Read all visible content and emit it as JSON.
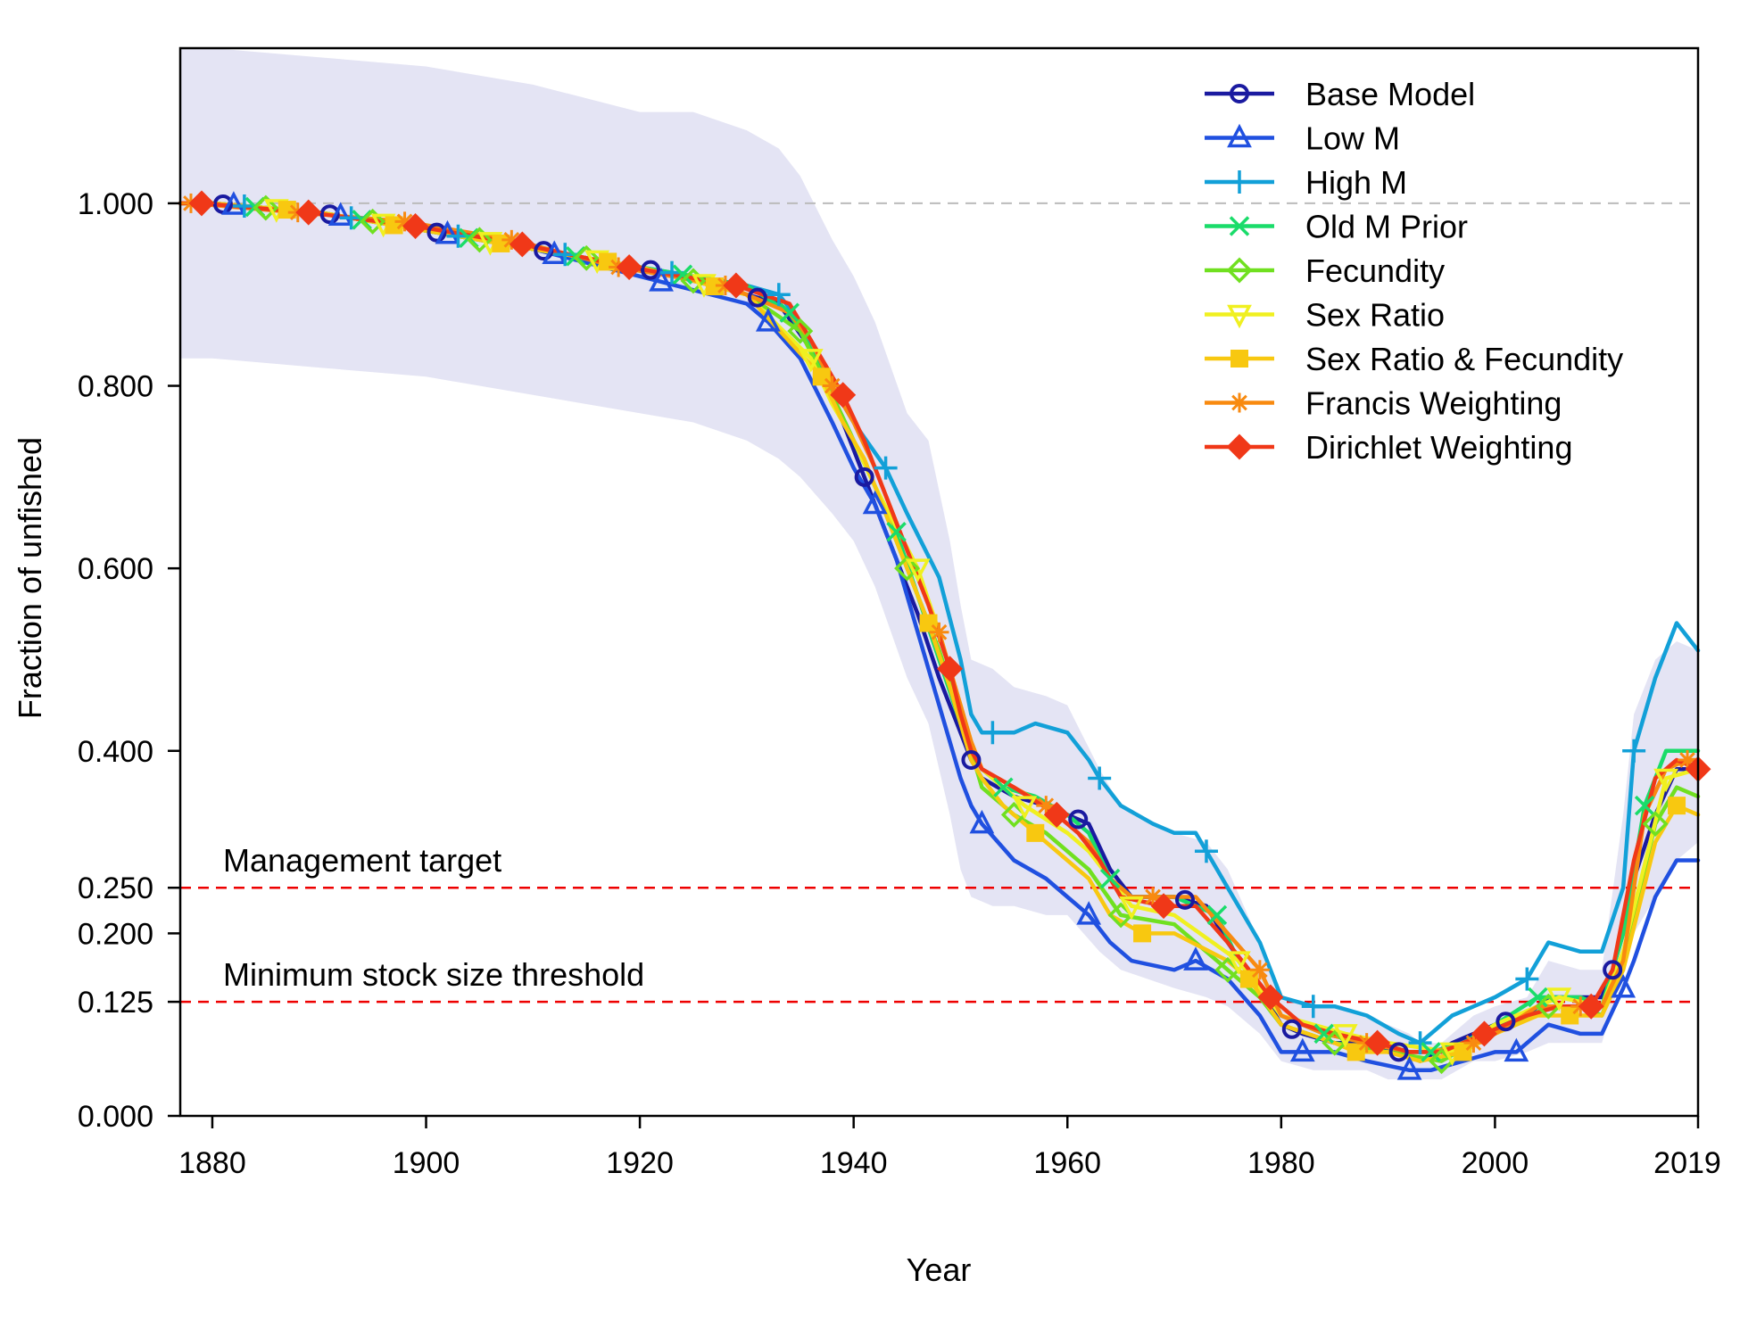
{
  "chart_data": {
    "type": "line",
    "title": "",
    "xlabel": "Year",
    "ylabel": "Fraction of unfished",
    "xlim": [
      1877,
      2019
    ],
    "ylim": [
      0,
      1.17
    ],
    "x_ticks": [
      "1880",
      "1900",
      "1920",
      "1940",
      "1960",
      "1980",
      "2000",
      "2019"
    ],
    "x_tick_values": [
      1880,
      1900,
      1920,
      1940,
      1960,
      1980,
      2000,
      2019
    ],
    "y_ticks": [
      "0.000",
      "0.125",
      "0.200",
      "0.250",
      "0.400",
      "0.600",
      "0.800",
      "1.000"
    ],
    "y_tick_values": [
      0,
      0.125,
      0.2,
      0.25,
      0.4,
      0.6,
      0.8,
      1.0
    ],
    "grid": false,
    "legend_position": "top-right",
    "reference_lines": [
      {
        "y": 1.0,
        "label": "",
        "color": "#bbbbbb"
      },
      {
        "y": 0.25,
        "label": "Management target",
        "color": "#ee0000"
      },
      {
        "y": 0.125,
        "label": "Minimum stock size threshold",
        "color": "#ee0000"
      }
    ],
    "uncertainty_band": {
      "color": "#e4e4f4",
      "x": [
        1877,
        1880,
        1890,
        1900,
        1910,
        1920,
        1925,
        1930,
        1933,
        1935,
        1938,
        1940,
        1942,
        1945,
        1947,
        1949,
        1950,
        1951,
        1953,
        1955,
        1958,
        1960,
        1963,
        1965,
        1970,
        1973,
        1975,
        1978,
        1980,
        1983,
        1985,
        1988,
        1990,
        1992,
        1993,
        1995,
        1998,
        2000,
        2003,
        2005,
        2008,
        2010,
        2012,
        2013,
        2015,
        2017,
        2019
      ],
      "upper": [
        1.17,
        1.17,
        1.16,
        1.15,
        1.13,
        1.1,
        1.1,
        1.08,
        1.06,
        1.03,
        0.96,
        0.92,
        0.87,
        0.77,
        0.74,
        0.63,
        0.56,
        0.5,
        0.49,
        0.47,
        0.46,
        0.45,
        0.38,
        0.34,
        0.31,
        0.3,
        0.27,
        0.19,
        0.13,
        0.12,
        0.12,
        0.11,
        0.1,
        0.09,
        0.08,
        0.08,
        0.11,
        0.12,
        0.13,
        0.17,
        0.16,
        0.16,
        0.33,
        0.44,
        0.5,
        0.52,
        0.51
      ],
      "lower": [
        0.83,
        0.83,
        0.82,
        0.81,
        0.79,
        0.77,
        0.76,
        0.74,
        0.72,
        0.7,
        0.66,
        0.63,
        0.58,
        0.48,
        0.43,
        0.33,
        0.27,
        0.24,
        0.23,
        0.23,
        0.22,
        0.22,
        0.18,
        0.16,
        0.14,
        0.13,
        0.12,
        0.09,
        0.06,
        0.05,
        0.05,
        0.05,
        0.04,
        0.04,
        0.04,
        0.04,
        0.06,
        0.06,
        0.07,
        0.08,
        0.08,
        0.08,
        0.16,
        0.2,
        0.24,
        0.28,
        0.3
      ]
    },
    "series": [
      {
        "name": "Base Model",
        "color": "#1a1aa0",
        "marker": "circle",
        "marker_x": [
          1881,
          1891,
          1901,
          1911,
          1921,
          1931,
          1941,
          1951,
          1961,
          1971,
          1981,
          1991,
          2001,
          2011
        ],
        "x": [
          1877,
          1880,
          1890,
          1900,
          1910,
          1920,
          1930,
          1933,
          1936,
          1938,
          1940,
          1942,
          1944,
          1946,
          1948,
          1950,
          1951,
          1952,
          1955,
          1958,
          1960,
          1962,
          1964,
          1966,
          1970,
          1973,
          1975,
          1978,
          1980,
          1982,
          1985,
          1988,
          1991,
          1993,
          1996,
          2000,
          2003,
          2005,
          2008,
          2010,
          2011,
          2012,
          2013,
          2015,
          2017,
          2019
        ],
        "y": [
          1.0,
          1.0,
          0.99,
          0.97,
          0.95,
          0.93,
          0.9,
          0.89,
          0.84,
          0.79,
          0.73,
          0.67,
          0.61,
          0.55,
          0.48,
          0.42,
          0.39,
          0.37,
          0.35,
          0.34,
          0.33,
          0.32,
          0.27,
          0.24,
          0.24,
          0.23,
          0.19,
          0.14,
          0.1,
          0.09,
          0.08,
          0.08,
          0.07,
          0.06,
          0.08,
          0.1,
          0.11,
          0.13,
          0.13,
          0.13,
          0.16,
          0.2,
          0.26,
          0.33,
          0.38,
          0.38
        ]
      },
      {
        "name": "Low M",
        "color": "#2050e0",
        "marker": "triangle-up",
        "marker_x": [
          1882,
          1892,
          1902,
          1912,
          1922,
          1932,
          1942,
          1952,
          1962,
          1972,
          1982,
          1992,
          2002,
          2012
        ],
        "x": [
          1877,
          1880,
          1890,
          1900,
          1910,
          1920,
          1930,
          1932,
          1935,
          1938,
          1940,
          1942,
          1944,
          1946,
          1948,
          1950,
          1951,
          1952,
          1955,
          1958,
          1960,
          1962,
          1964,
          1966,
          1970,
          1972,
          1975,
          1978,
          1980,
          1982,
          1985,
          1988,
          1992,
          1994,
          1997,
          2000,
          2002,
          2005,
          2008,
          2010,
          2012,
          2013,
          2015,
          2017,
          2019
        ],
        "y": [
          1.0,
          1.0,
          0.99,
          0.97,
          0.95,
          0.92,
          0.89,
          0.87,
          0.83,
          0.76,
          0.71,
          0.67,
          0.61,
          0.53,
          0.45,
          0.37,
          0.34,
          0.32,
          0.28,
          0.26,
          0.24,
          0.22,
          0.19,
          0.17,
          0.16,
          0.17,
          0.15,
          0.11,
          0.07,
          0.07,
          0.07,
          0.06,
          0.05,
          0.05,
          0.06,
          0.07,
          0.07,
          0.1,
          0.09,
          0.09,
          0.14,
          0.17,
          0.24,
          0.28,
          0.28
        ]
      },
      {
        "name": "High M",
        "color": "#12a0d8",
        "marker": "plus",
        "marker_x": [
          1883,
          1893,
          1903,
          1913,
          1923,
          1933,
          1943,
          1953,
          1963,
          1973,
          1983,
          1993,
          2003,
          2013
        ],
        "x": [
          1877,
          1880,
          1890,
          1900,
          1910,
          1920,
          1930,
          1933,
          1935,
          1938,
          1940,
          1943,
          1945,
          1948,
          1950,
          1951,
          1952,
          1953,
          1955,
          1957,
          1960,
          1962,
          1963,
          1965,
          1968,
          1970,
          1972,
          1973,
          1975,
          1978,
          1980,
          1983,
          1985,
          1988,
          1991,
          1993,
          1996,
          2000,
          2003,
          2005,
          2008,
          2010,
          2012,
          2013,
          2015,
          2017,
          2019
        ],
        "y": [
          1.0,
          1.0,
          0.99,
          0.97,
          0.95,
          0.93,
          0.91,
          0.9,
          0.87,
          0.8,
          0.76,
          0.71,
          0.66,
          0.59,
          0.5,
          0.44,
          0.42,
          0.42,
          0.42,
          0.43,
          0.42,
          0.39,
          0.37,
          0.34,
          0.32,
          0.31,
          0.31,
          0.29,
          0.25,
          0.19,
          0.13,
          0.12,
          0.12,
          0.11,
          0.09,
          0.08,
          0.11,
          0.13,
          0.15,
          0.19,
          0.18,
          0.18,
          0.25,
          0.4,
          0.48,
          0.54,
          0.51
        ]
      },
      {
        "name": "Old M Prior",
        "color": "#1adc6a",
        "marker": "x",
        "marker_x": [
          1884,
          1894,
          1904,
          1914,
          1924,
          1934,
          1944,
          1954,
          1964,
          1974,
          1984,
          1994,
          2004,
          2014
        ],
        "x": [
          1877,
          1880,
          1890,
          1900,
          1910,
          1920,
          1930,
          1934,
          1936,
          1938,
          1940,
          1942,
          1944,
          1946,
          1948,
          1950,
          1951,
          1952,
          1954,
          1957,
          1960,
          1962,
          1964,
          1966,
          1970,
          1974,
          1976,
          1978,
          1980,
          1984,
          1988,
          1992,
          1994,
          1997,
          2000,
          2004,
          2008,
          2010,
          2012,
          2014,
          2016,
          2019
        ],
        "y": [
          1.0,
          1.0,
          0.99,
          0.97,
          0.95,
          0.93,
          0.91,
          0.88,
          0.84,
          0.79,
          0.74,
          0.69,
          0.64,
          0.57,
          0.5,
          0.43,
          0.4,
          0.38,
          0.36,
          0.35,
          0.33,
          0.31,
          0.26,
          0.24,
          0.24,
          0.22,
          0.17,
          0.14,
          0.11,
          0.09,
          0.08,
          0.07,
          0.07,
          0.08,
          0.1,
          0.13,
          0.13,
          0.12,
          0.2,
          0.34,
          0.4,
          0.4
        ]
      },
      {
        "name": "Fecundity",
        "color": "#70e020",
        "marker": "diamond",
        "marker_x": [
          1885,
          1895,
          1905,
          1915,
          1925,
          1935,
          1945,
          1955,
          1965,
          1975,
          1985,
          1995,
          2005,
          2015
        ],
        "x": [
          1877,
          1880,
          1890,
          1900,
          1910,
          1920,
          1930,
          1935,
          1938,
          1940,
          1942,
          1945,
          1948,
          1950,
          1951,
          1952,
          1955,
          1958,
          1960,
          1962,
          1965,
          1970,
          1975,
          1978,
          1980,
          1985,
          1990,
          1995,
          1998,
          2000,
          2005,
          2008,
          2010,
          2012,
          2015,
          2017,
          2019
        ],
        "y": [
          1.0,
          1.0,
          0.99,
          0.97,
          0.95,
          0.93,
          0.9,
          0.86,
          0.79,
          0.74,
          0.69,
          0.6,
          0.51,
          0.44,
          0.4,
          0.36,
          0.33,
          0.31,
          0.29,
          0.27,
          0.22,
          0.21,
          0.16,
          0.13,
          0.1,
          0.08,
          0.07,
          0.06,
          0.08,
          0.09,
          0.12,
          0.12,
          0.11,
          0.17,
          0.32,
          0.36,
          0.35
        ]
      },
      {
        "name": "Sex Ratio",
        "color": "#f0f020",
        "marker": "triangle-down",
        "marker_x": [
          1886,
          1896,
          1906,
          1916,
          1926,
          1936,
          1946,
          1956,
          1966,
          1976,
          1986,
          1996,
          2006,
          2016
        ],
        "x": [
          1877,
          1880,
          1890,
          1900,
          1910,
          1920,
          1930,
          1936,
          1938,
          1940,
          1942,
          1946,
          1948,
          1950,
          1951,
          1952,
          1956,
          1960,
          1962,
          1966,
          1970,
          1976,
          1978,
          1980,
          1986,
          1990,
          1996,
          2000,
          2006,
          2010,
          2012,
          2016,
          2019
        ],
        "y": [
          1.0,
          1.0,
          0.99,
          0.97,
          0.95,
          0.93,
          0.9,
          0.83,
          0.78,
          0.74,
          0.69,
          0.6,
          0.53,
          0.45,
          0.41,
          0.38,
          0.34,
          0.31,
          0.29,
          0.23,
          0.22,
          0.17,
          0.14,
          0.11,
          0.09,
          0.08,
          0.07,
          0.1,
          0.13,
          0.12,
          0.18,
          0.37,
          0.38
        ]
      },
      {
        "name": "Sex Ratio & Fecundity",
        "color": "#f8c810",
        "marker": "square",
        "marker_x": [
          1887,
          1897,
          1907,
          1917,
          1927,
          1937,
          1947,
          1957,
          1967,
          1977,
          1987,
          1997,
          2007,
          2017
        ],
        "x": [
          1877,
          1880,
          1890,
          1900,
          1910,
          1920,
          1930,
          1937,
          1939,
          1941,
          1943,
          1945,
          1947,
          1949,
          1950,
          1951,
          1952,
          1954,
          1957,
          1960,
          1962,
          1964,
          1967,
          1970,
          1975,
          1977,
          1980,
          1985,
          1987,
          1990,
          1993,
          1997,
          2000,
          2004,
          2007,
          2010,
          2012,
          2015,
          2017,
          2019
        ],
        "y": [
          1.0,
          1.0,
          0.99,
          0.97,
          0.95,
          0.93,
          0.9,
          0.81,
          0.76,
          0.72,
          0.66,
          0.6,
          0.54,
          0.47,
          0.43,
          0.39,
          0.37,
          0.34,
          0.31,
          0.28,
          0.26,
          0.22,
          0.2,
          0.2,
          0.17,
          0.15,
          0.1,
          0.08,
          0.07,
          0.07,
          0.06,
          0.07,
          0.09,
          0.11,
          0.11,
          0.11,
          0.16,
          0.3,
          0.34,
          0.33
        ]
      },
      {
        "name": "Francis Weighting",
        "color": "#f88a10",
        "marker": "asterisk",
        "marker_x": [
          1878,
          1888,
          1898,
          1908,
          1918,
          1928,
          1938,
          1948,
          1958,
          1968,
          1978,
          1988,
          1998,
          2008,
          2018
        ],
        "x": [
          1877,
          1878,
          1888,
          1898,
          1908,
          1918,
          1928,
          1934,
          1936,
          1938,
          1940,
          1942,
          1944,
          1946,
          1948,
          1950,
          1951,
          1952,
          1955,
          1958,
          1960,
          1962,
          1964,
          1966,
          1968,
          1972,
          1975,
          1978,
          1980,
          1984,
          1988,
          1992,
          1994,
          1998,
          2000,
          2004,
          2008,
          2010,
          2012,
          2014,
          2016,
          2018,
          2019
        ],
        "y": [
          1.0,
          1.0,
          0.99,
          0.98,
          0.96,
          0.93,
          0.91,
          0.88,
          0.85,
          0.8,
          0.76,
          0.71,
          0.65,
          0.59,
          0.53,
          0.45,
          0.41,
          0.38,
          0.36,
          0.34,
          0.32,
          0.3,
          0.26,
          0.24,
          0.24,
          0.24,
          0.2,
          0.16,
          0.11,
          0.09,
          0.08,
          0.07,
          0.07,
          0.08,
          0.09,
          0.12,
          0.12,
          0.12,
          0.17,
          0.33,
          0.38,
          0.39,
          0.39
        ]
      },
      {
        "name": "Dirichlet Weighting",
        "color": "#f03818",
        "marker": "diamond-filled",
        "marker_x": [
          1879,
          1889,
          1899,
          1909,
          1919,
          1929,
          1939,
          1949,
          1959,
          1969,
          1979,
          1989,
          1999,
          2009,
          2019
        ],
        "x": [
          1877,
          1879,
          1889,
          1899,
          1909,
          1919,
          1929,
          1934,
          1936,
          1939,
          1941,
          1943,
          1945,
          1947,
          1949,
          1950,
          1951,
          1952,
          1955,
          1959,
          1961,
          1963,
          1965,
          1969,
          1972,
          1975,
          1979,
          1982,
          1985,
          1989,
          1992,
          1995,
          1999,
          2003,
          2006,
          2009,
          2011,
          2013,
          2015,
          2017,
          2019
        ],
        "y": [
          1.0,
          1.0,
          0.99,
          0.975,
          0.955,
          0.93,
          0.91,
          0.89,
          0.85,
          0.79,
          0.74,
          0.68,
          0.62,
          0.56,
          0.49,
          0.44,
          0.4,
          0.38,
          0.36,
          0.33,
          0.31,
          0.28,
          0.24,
          0.23,
          0.23,
          0.19,
          0.13,
          0.1,
          0.09,
          0.08,
          0.07,
          0.07,
          0.09,
          0.11,
          0.12,
          0.12,
          0.16,
          0.28,
          0.37,
          0.39,
          0.38
        ]
      }
    ]
  }
}
